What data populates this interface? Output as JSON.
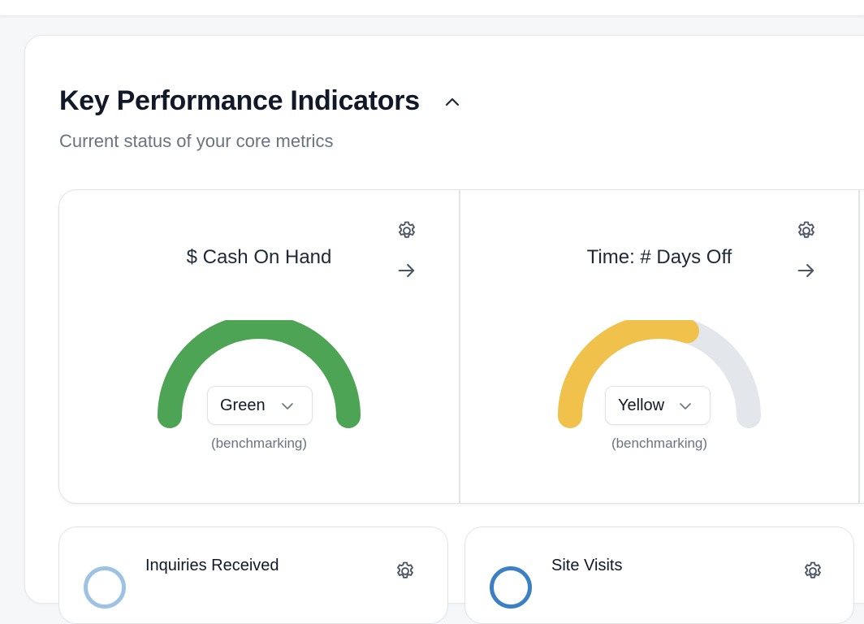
{
  "section": {
    "title": "Key Performance Indicators",
    "subtitle": "Current status of your core metrics"
  },
  "kpis": [
    {
      "name": "$ Cash On Hand",
      "status": "Green",
      "status_fraction": 1.0,
      "note": "(benchmarking)",
      "colors": {
        "fill": "#4ea455",
        "track": "#e5e8ec"
      }
    },
    {
      "name": "Time: # Days Off",
      "status": "Yellow",
      "status_fraction": 0.6,
      "note": "(benchmarking)",
      "colors": {
        "fill": "#f0c14b",
        "track": "#e3e6eb"
      }
    }
  ],
  "metrics": [
    {
      "name": "Inquiries Received",
      "ring_color": "#9ec2e4"
    },
    {
      "name": "Site Visits",
      "ring_color": "#3b7fc4"
    }
  ],
  "icons": {
    "collapse": "chevron-up-icon",
    "settings": "gear-icon",
    "open": "arrow-right-icon",
    "dropdown": "chevron-down-icon"
  }
}
